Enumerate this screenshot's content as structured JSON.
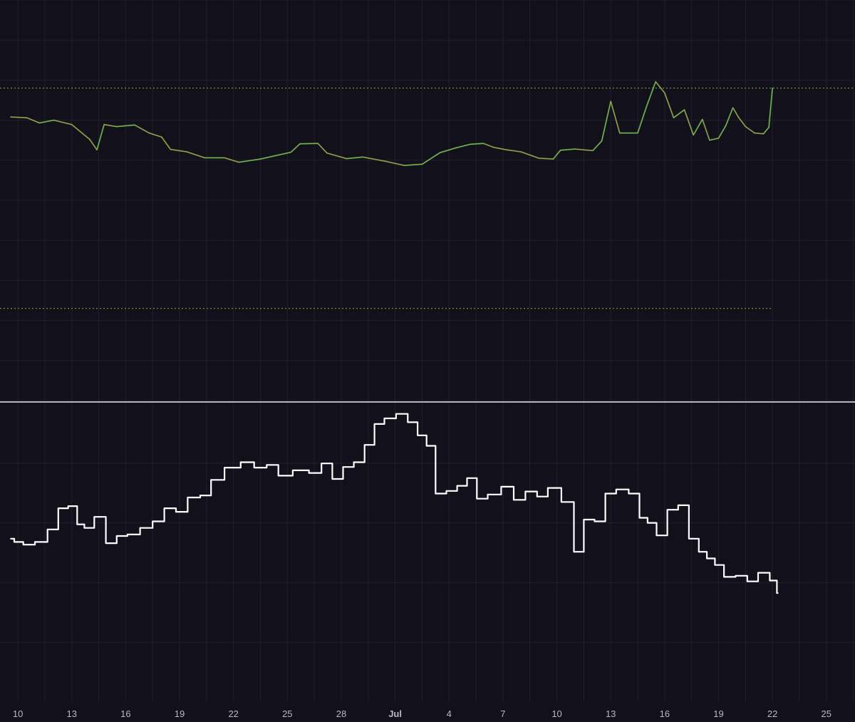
{
  "colors": {
    "background": "#12101a",
    "grid": "#211f2b",
    "candle_up": "#5db85c",
    "candle_down": "#d0603d",
    "top_line": "#7ab24f",
    "divider": "#b5b5bd",
    "indicator_line": "#ffffff",
    "axis_text": "#b9b8c4"
  },
  "chart_data": [
    {
      "type": "line",
      "panel": "price",
      "ylim": [
        0,
        100
      ],
      "grid": true,
      "x_range": [
        9.6,
        56
      ],
      "series": [
        {
          "values": [
            [
              9.6,
              70.8
            ],
            [
              10.5,
              70.6
            ],
            [
              11.2,
              69.3
            ],
            [
              12.0,
              70.0
            ],
            [
              13.0,
              68.9
            ],
            [
              14.0,
              65.2
            ],
            [
              14.4,
              62.6
            ],
            [
              14.8,
              68.9
            ],
            [
              15.5,
              68.4
            ],
            [
              16.5,
              68.8
            ],
            [
              17.3,
              66.8
            ],
            [
              18.0,
              65.8
            ],
            [
              18.5,
              62.7
            ],
            [
              19.4,
              62.1
            ],
            [
              20.4,
              60.6
            ],
            [
              21.5,
              60.6
            ],
            [
              22.3,
              59.5
            ],
            [
              23.5,
              60.3
            ],
            [
              24.5,
              61.3
            ],
            [
              25.2,
              62.0
            ],
            [
              25.7,
              64.1
            ],
            [
              26.7,
              64.2
            ],
            [
              27.2,
              61.8
            ],
            [
              28.3,
              60.4
            ],
            [
              29.2,
              60.8
            ],
            [
              30.5,
              59.7
            ],
            [
              31.5,
              58.7
            ],
            [
              32.5,
              59.0
            ],
            [
              33.5,
              61.9
            ],
            [
              34.4,
              63.1
            ],
            [
              35.2,
              64.0
            ],
            [
              35.9,
              64.2
            ],
            [
              36.5,
              63.2
            ],
            [
              37.2,
              62.6
            ],
            [
              38.0,
              62.1
            ],
            [
              39.0,
              60.5
            ],
            [
              39.8,
              60.3
            ],
            [
              40.2,
              62.5
            ],
            [
              41.0,
              62.8
            ],
            [
              42.0,
              62.4
            ],
            [
              42.5,
              64.8
            ],
            [
              43.0,
              74.7
            ],
            [
              43.5,
              66.8
            ],
            [
              44.5,
              66.8
            ],
            [
              45.0,
              73.5
            ],
            [
              45.5,
              79.6
            ],
            [
              46.0,
              76.8
            ],
            [
              46.5,
              70.6
            ],
            [
              47.1,
              72.6
            ],
            [
              47.6,
              66.3
            ],
            [
              48.1,
              70.2
            ],
            [
              48.5,
              65.0
            ],
            [
              49.0,
              65.5
            ],
            [
              49.4,
              68.6
            ],
            [
              49.8,
              73.1
            ],
            [
              50.1,
              70.8
            ],
            [
              50.5,
              68.4
            ],
            [
              51.0,
              66.8
            ],
            [
              51.5,
              66.6
            ],
            [
              51.8,
              68.2
            ],
            [
              52.0,
              78.0
            ]
          ]
        }
      ],
      "reference_lines": [
        78.0,
        23.0
      ]
    },
    {
      "type": "line",
      "panel": "indicator",
      "ylim": [
        0,
        100
      ],
      "x_range": [
        9.6,
        56
      ],
      "x_ticks": [
        "10",
        "13",
        "16",
        "19",
        "22",
        "25",
        "28",
        "Jul",
        "4",
        "7",
        "10",
        "13",
        "16",
        "19",
        "22",
        "25"
      ],
      "series": [
        {
          "values": [
            [
              9.6,
              54.7
            ],
            [
              10.0,
              53.6
            ],
            [
              10.6,
              52.7
            ],
            [
              11.3,
              53.6
            ],
            [
              12.0,
              57.8
            ],
            [
              12.5,
              64.9
            ],
            [
              13.1,
              65.6
            ],
            [
              13.5,
              59.5
            ],
            [
              13.9,
              58.3
            ],
            [
              14.6,
              62.0
            ],
            [
              15.2,
              53.2
            ],
            [
              15.8,
              55.6
            ],
            [
              16.4,
              56.1
            ],
            [
              17.2,
              58.3
            ],
            [
              17.8,
              60.5
            ],
            [
              18.5,
              64.9
            ],
            [
              19.1,
              63.7
            ],
            [
              19.8,
              68.5
            ],
            [
              20.5,
              69.2
            ],
            [
              21.0,
              74.4
            ],
            [
              22.0,
              78.5
            ],
            [
              22.8,
              80.3
            ],
            [
              23.5,
              78.5
            ],
            [
              24.2,
              79.4
            ],
            [
              24.8,
              75.8
            ],
            [
              25.8,
              77.6
            ],
            [
              26.6,
              76.7
            ],
            [
              27.2,
              79.9
            ],
            [
              27.8,
              74.7
            ],
            [
              28.4,
              78.7
            ],
            [
              29.0,
              80.3
            ],
            [
              29.6,
              86.1
            ],
            [
              30.1,
              93.1
            ],
            [
              30.7,
              95.0
            ],
            [
              31.4,
              96.5
            ],
            [
              32.0,
              93.7
            ],
            [
              32.5,
              89.3
            ],
            [
              33.0,
              85.8
            ],
            [
              33.5,
              69.8
            ],
            [
              34.2,
              70.7
            ],
            [
              34.7,
              72.4
            ],
            [
              35.3,
              75.0
            ],
            [
              35.8,
              68.1
            ],
            [
              36.5,
              69.5
            ],
            [
              37.3,
              72.1
            ],
            [
              37.9,
              67.7
            ],
            [
              38.6,
              70.5
            ],
            [
              39.2,
              68.8
            ],
            [
              39.8,
              71.7
            ],
            [
              40.7,
              67.0
            ],
            [
              41.2,
              50.3
            ],
            [
              41.8,
              61.1
            ],
            [
              42.4,
              60.5
            ],
            [
              43.0,
              69.8
            ],
            [
              43.6,
              71.2
            ],
            [
              44.4,
              69.8
            ],
            [
              44.8,
              61.7
            ],
            [
              45.3,
              60.0
            ],
            [
              45.8,
              55.8
            ],
            [
              46.5,
              64.4
            ],
            [
              47.0,
              65.9
            ],
            [
              47.7,
              54.7
            ],
            [
              48.1,
              50.3
            ],
            [
              48.6,
              48.1
            ],
            [
              49.0,
              45.9
            ],
            [
              49.6,
              41.9
            ],
            [
              50.3,
              42.3
            ],
            [
              50.9,
              40.4
            ],
            [
              51.5,
              43.3
            ],
            [
              52.2,
              40.7
            ],
            [
              52.3,
              36.5
            ]
          ]
        }
      ]
    }
  ]
}
